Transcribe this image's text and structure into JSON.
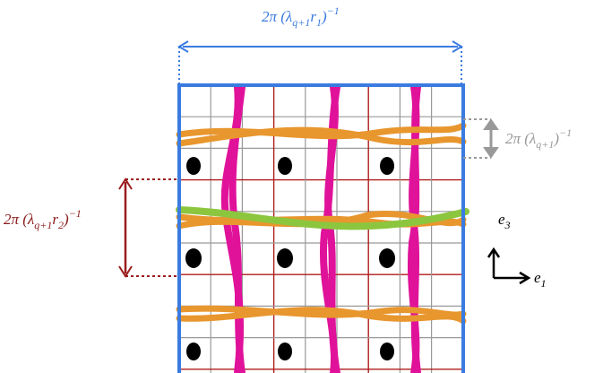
{
  "labels": {
    "top": [
      {
        "text": "2π (λ"
      },
      {
        "text": "q+1",
        "sub": true
      },
      {
        "text": "r"
      },
      {
        "text": "1",
        "sub": true
      },
      {
        "text": ")"
      },
      {
        "text": "−1",
        "sup": true
      }
    ],
    "right": [
      {
        "text": "2π (λ"
      },
      {
        "text": "q+1",
        "sub": true
      },
      {
        "text": ")"
      },
      {
        "text": "−1",
        "sup": true
      }
    ],
    "left": [
      {
        "text": "2π (λ"
      },
      {
        "text": "q+1",
        "sub": true
      },
      {
        "text": "r"
      },
      {
        "text": "2",
        "sub": true
      },
      {
        "text": ")"
      },
      {
        "text": "−1",
        "sup": true
      }
    ],
    "e3": [
      {
        "text": "e"
      },
      {
        "text": "3",
        "sub": true
      }
    ],
    "e1": [
      {
        "text": "e"
      },
      {
        "text": "1",
        "sub": true
      }
    ]
  }
}
